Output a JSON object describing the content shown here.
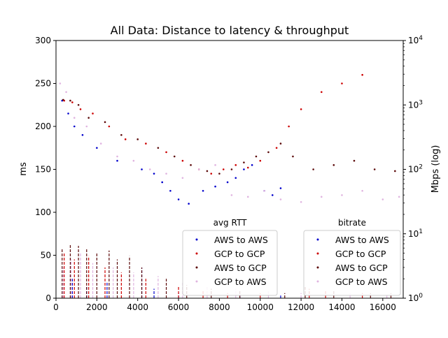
{
  "figure": {
    "title": "All Data: Distance to latency & throughput"
  },
  "chart_data": {
    "type": "scatter",
    "title": "All Data: Distance to latency & throughput",
    "xlabel": "",
    "ylabel": "ms",
    "y2label": "Mbps (log)",
    "xlim": [
      0,
      17000
    ],
    "ylim": [
      0,
      300
    ],
    "y2lim": [
      1,
      10000
    ],
    "y2scale": "log",
    "x_ticks": [
      0,
      2000,
      4000,
      6000,
      8000,
      10000,
      12000,
      14000,
      16000
    ],
    "y_ticks": [
      0,
      50,
      100,
      150,
      200,
      250,
      300
    ],
    "y2_ticks": [
      {
        "value": 1,
        "base": "10",
        "exp": "0"
      },
      {
        "value": 10,
        "base": "10",
        "exp": "1"
      },
      {
        "value": 100,
        "base": "10",
        "exp": "2"
      },
      {
        "value": 1000,
        "base": "10",
        "exp": "3"
      },
      {
        "value": 10000,
        "base": "10",
        "exp": "4"
      }
    ],
    "grid": false,
    "legends": [
      {
        "title": "avg RTT",
        "placement": "lower-center",
        "entries": [
          {
            "label": "AWS to AWS",
            "color": "#0000cc"
          },
          {
            "label": "GCP to GCP",
            "color": "#cc0000"
          },
          {
            "label": "AWS to GCP",
            "color": "#5c0a0a"
          },
          {
            "label": "GCP to AWS",
            "color": "#e0b4e0"
          }
        ]
      },
      {
        "title": "bitrate",
        "placement": "lower-right",
        "entries": [
          {
            "label": "AWS to AWS",
            "color": "#0000cc"
          },
          {
            "label": "GCP to GCP",
            "color": "#cc0000"
          },
          {
            "label": "AWS to GCP",
            "color": "#5c0a0a"
          },
          {
            "label": "GCP to AWS",
            "color": "#e0b4e0"
          }
        ]
      }
    ],
    "series": [
      {
        "name": "AWS to AWS",
        "axis": "rtt",
        "color": "#0000cc",
        "points": [
          [
            300,
            230
          ],
          [
            600,
            215
          ],
          [
            900,
            200
          ],
          [
            1300,
            190
          ],
          [
            2000,
            175
          ],
          [
            3000,
            160
          ],
          [
            4200,
            150
          ],
          [
            4800,
            145
          ],
          [
            5200,
            135
          ],
          [
            5600,
            125
          ],
          [
            6000,
            115
          ],
          [
            6500,
            110
          ],
          [
            7200,
            125
          ],
          [
            7800,
            130
          ],
          [
            8400,
            135
          ],
          [
            8800,
            140
          ],
          [
            9200,
            150
          ],
          [
            9600,
            155
          ],
          [
            10200,
            125
          ],
          [
            10600,
            120
          ],
          [
            11000,
            128
          ]
        ]
      },
      {
        "name": "GCP to GCP",
        "axis": "rtt",
        "color": "#cc0000",
        "points": [
          [
            400,
            230
          ],
          [
            800,
            228
          ],
          [
            1200,
            220
          ],
          [
            1800,
            215
          ],
          [
            2600,
            200
          ],
          [
            3400,
            185
          ],
          [
            4400,
            180
          ],
          [
            5400,
            170
          ],
          [
            6200,
            160
          ],
          [
            7000,
            150
          ],
          [
            7600,
            145
          ],
          [
            8200,
            150
          ],
          [
            8800,
            155
          ],
          [
            9400,
            152
          ],
          [
            10000,
            160
          ],
          [
            10800,
            175
          ],
          [
            11400,
            200
          ],
          [
            12000,
            220
          ],
          [
            13000,
            240
          ],
          [
            14000,
            250
          ],
          [
            15000,
            260
          ]
        ]
      },
      {
        "name": "AWS to GCP",
        "axis": "rtt",
        "color": "#5c0a0a",
        "points": [
          [
            350,
            231
          ],
          [
            700,
            230
          ],
          [
            1100,
            225
          ],
          [
            1600,
            210
          ],
          [
            2400,
            205
          ],
          [
            3200,
            190
          ],
          [
            4000,
            185
          ],
          [
            5000,
            175
          ],
          [
            5800,
            165
          ],
          [
            6600,
            155
          ],
          [
            7400,
            148
          ],
          [
            8000,
            145
          ],
          [
            8600,
            150
          ],
          [
            9200,
            158
          ],
          [
            9800,
            165
          ],
          [
            10400,
            170
          ],
          [
            11000,
            180
          ],
          [
            11600,
            165
          ],
          [
            12600,
            150
          ],
          [
            13600,
            155
          ],
          [
            14600,
            160
          ],
          [
            15600,
            150
          ],
          [
            16600,
            148
          ]
        ]
      },
      {
        "name": "GCP to AWS",
        "axis": "rtt",
        "color": "#e0b4e0",
        "points": [
          [
            200,
            250
          ],
          [
            500,
            240
          ],
          [
            900,
            210
          ],
          [
            1500,
            200
          ],
          [
            2200,
            180
          ],
          [
            3000,
            165
          ],
          [
            3800,
            160
          ],
          [
            4600,
            150
          ],
          [
            5400,
            145
          ],
          [
            6200,
            140
          ],
          [
            7000,
            150
          ],
          [
            7800,
            155
          ],
          [
            8600,
            120
          ],
          [
            9400,
            118
          ],
          [
            10200,
            125
          ],
          [
            11000,
            115
          ],
          [
            12000,
            112
          ],
          [
            13000,
            118
          ],
          [
            14000,
            120
          ],
          [
            15000,
            125
          ],
          [
            16000,
            115
          ],
          [
            16800,
            118
          ]
        ]
      },
      {
        "name": "AWS to AWS",
        "axis": "bitrate",
        "color": "#0000cc",
        "points": [
          [
            800,
            2
          ],
          [
            1500,
            1.5
          ],
          [
            2500,
            1.8
          ],
          [
            4200,
            3
          ],
          [
            4800,
            1.4
          ],
          [
            6000,
            1.2
          ],
          [
            9000,
            1.1
          ],
          [
            11000,
            1.1
          ]
        ]
      },
      {
        "name": "GCP to GCP",
        "axis": "bitrate",
        "color": "#cc0000",
        "points": [
          [
            400,
            5
          ],
          [
            900,
            4
          ],
          [
            1600,
            4.5
          ],
          [
            2400,
            3
          ],
          [
            3200,
            2.5
          ],
          [
            4400,
            2
          ],
          [
            6000,
            1.5
          ],
          [
            7200,
            1.3
          ],
          [
            8400,
            1.2
          ],
          [
            10000,
            1.2
          ],
          [
            12400,
            1.4
          ],
          [
            13200,
            1.3
          ],
          [
            15000,
            1.2
          ]
        ]
      },
      {
        "name": "AWS to GCP",
        "axis": "bitrate",
        "color": "#5c0a0a",
        "points": [
          [
            300,
            6
          ],
          [
            700,
            7
          ],
          [
            1100,
            6.5
          ],
          [
            1500,
            6
          ],
          [
            2000,
            5
          ],
          [
            2600,
            5.5
          ],
          [
            3000,
            4
          ],
          [
            3600,
            4.5
          ],
          [
            4200,
            3
          ],
          [
            5400,
            2
          ],
          [
            6400,
            1.6
          ],
          [
            7600,
            1.4
          ],
          [
            9000,
            1.3
          ],
          [
            11200,
            1.2
          ],
          [
            12200,
            1.5
          ],
          [
            13600,
            1.3
          ],
          [
            15400,
            1.2
          ],
          [
            16400,
            1.2
          ]
        ]
      },
      {
        "name": "GCP to AWS",
        "axis": "bitrate",
        "color": "#e0b4e0",
        "points": [
          [
            350,
            3
          ],
          [
            750,
            4
          ],
          [
            1200,
            5
          ],
          [
            1800,
            3.5
          ],
          [
            2800,
            3
          ],
          [
            3800,
            2.5
          ],
          [
            5000,
            2.2
          ],
          [
            6200,
            1.8
          ],
          [
            7400,
            1.5
          ],
          [
            8800,
            1.4
          ],
          [
            10400,
            1.3
          ],
          [
            12000,
            1.2
          ],
          [
            14400,
            1.2
          ],
          [
            16200,
            1.1
          ]
        ]
      }
    ]
  }
}
